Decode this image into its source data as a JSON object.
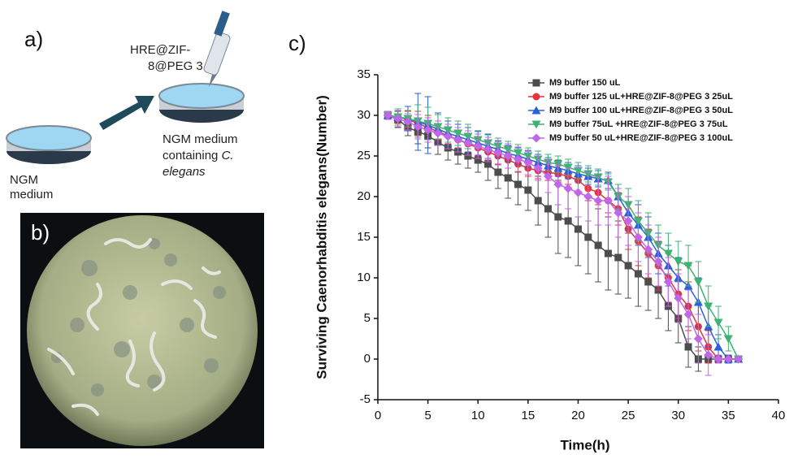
{
  "panel_a": {
    "label": "a)",
    "reagent_lines": [
      "HRE@ZIF-",
      "8@PEG 3"
    ],
    "dish1_lines": [
      "NGM",
      "medium"
    ],
    "dish2_lines": [
      "NGM medium",
      "containing"
    ],
    "dish2_italic_prefix": "C.",
    "dish2_italic_line": "elegans"
  },
  "panel_b": {
    "label": "b)"
  },
  "panel_c": {
    "label": "c)"
  },
  "chart_data": {
    "type": "line",
    "x_label": "Time(h)",
    "y_label": "Surviving Caenorhabditis elegans(Number)",
    "x": [
      1,
      2,
      3,
      4,
      5,
      6,
      7,
      8,
      9,
      10,
      11,
      12,
      13,
      14,
      15,
      16,
      17,
      18,
      19,
      20,
      21,
      22,
      23,
      24,
      25,
      26,
      27,
      28,
      29,
      30,
      31,
      32,
      33,
      34,
      35,
      36
    ],
    "xlim": [
      0,
      40
    ],
    "xticks": [
      0,
      5,
      10,
      15,
      20,
      25,
      30,
      35,
      40
    ],
    "ylim": [
      -5,
      35
    ],
    "yticks": [
      -5,
      0,
      5,
      10,
      15,
      20,
      25,
      30,
      35
    ],
    "legend": "top-right",
    "series": [
      {
        "name": "M9 buffer 150 uL",
        "color": "#4d4d4d",
        "marker": "square",
        "values": [
          30,
          29.5,
          28.5,
          28,
          27.5,
          26.7,
          26,
          25.5,
          25,
          24.5,
          24,
          23,
          22.3,
          21.5,
          20.8,
          19.5,
          18.5,
          17.5,
          17,
          16,
          15,
          14,
          13,
          12.5,
          11.5,
          10.5,
          9.5,
          8.5,
          6.5,
          5,
          1.5,
          0,
          0,
          0,
          0,
          0
        ],
        "errors": [
          0.5,
          1,
          1,
          1.5,
          1.5,
          1.5,
          1.5,
          1.5,
          1.5,
          1.5,
          2,
          2,
          2.5,
          2.5,
          2.5,
          3,
          3.5,
          4.5,
          4.5,
          4.5,
          4.5,
          4.5,
          4.5,
          4.5,
          4,
          4,
          3.5,
          3.5,
          3,
          3,
          2.5,
          1.5,
          0.5,
          0,
          0,
          0
        ]
      },
      {
        "name": "M9 buffer 125 uL+HRE@ZIF-8@PEG 3 25uL",
        "color": "#e8323c",
        "marker": "circle",
        "values": [
          30,
          29.8,
          29.5,
          29,
          28.5,
          28,
          27.5,
          27,
          26.5,
          26,
          25.5,
          25,
          24.5,
          24,
          23.5,
          23.2,
          23,
          22.8,
          22.5,
          22,
          21,
          20.5,
          19.5,
          18.5,
          16,
          14.5,
          13,
          11.5,
          10,
          8,
          6.5,
          4,
          1.5,
          0,
          0,
          0
        ],
        "errors": [
          0.5,
          0.8,
          1,
          1.5,
          1.5,
          1,
          1,
          1,
          1,
          1,
          1,
          1,
          1,
          1,
          1,
          1,
          1,
          1,
          1,
          1.5,
          1.5,
          1.5,
          1.5,
          2,
          2.5,
          3,
          3,
          3,
          3,
          3,
          3,
          3,
          2,
          0.5,
          0,
          0
        ]
      },
      {
        "name": "M9 buffer 100 uL+HRE@ZIF-8@PEG 3 50uL",
        "color": "#2b5fdb",
        "marker": "triangle-up",
        "values": [
          30,
          29.8,
          29.6,
          29.2,
          28.8,
          28.3,
          27.8,
          27.4,
          27,
          26.6,
          26.2,
          25.8,
          25.3,
          25,
          24.6,
          24.2,
          23.8,
          23.5,
          23.2,
          22.8,
          22.5,
          22.2,
          22,
          20,
          18,
          16.5,
          15,
          13,
          11.5,
          10,
          9,
          7,
          4,
          1.5,
          0,
          0
        ],
        "errors": [
          0.5,
          1,
          1.5,
          3.5,
          3.5,
          2,
          1.5,
          1.5,
          1.5,
          1.5,
          1.5,
          1,
          1,
          1,
          1,
          1,
          1,
          1,
          1,
          1,
          1,
          1,
          1,
          1.5,
          2,
          2.5,
          2.5,
          2.5,
          2.5,
          2.5,
          2.5,
          3,
          2.5,
          1.5,
          0.5,
          0
        ]
      },
      {
        "name": "M9 buffer 75uL +HRE@ZIF-8@PEG 3 75uL",
        "color": "#3cb371",
        "marker": "triangle-down",
        "values": [
          30,
          29.8,
          29.6,
          29.3,
          29,
          28.6,
          28.2,
          27.8,
          27.4,
          27,
          26.6,
          26.2,
          25.8,
          25.4,
          25,
          24.6,
          24.2,
          24,
          23.6,
          23.2,
          22.8,
          22.4,
          21.8,
          20,
          19,
          17,
          15.5,
          14,
          13,
          12,
          11.5,
          9.5,
          6.5,
          4.5,
          2.5,
          0
        ],
        "errors": [
          0.5,
          1,
          1,
          2,
          2,
          1.5,
          1.5,
          1.5,
          1.5,
          1,
          1,
          1,
          1,
          1,
          1,
          1,
          1,
          1,
          1,
          1,
          1,
          1,
          1,
          1.5,
          2,
          2.5,
          2.5,
          2.5,
          2.5,
          2.5,
          2.5,
          2.5,
          2.5,
          2,
          1.5,
          0
        ]
      },
      {
        "name": "M9 buffer 50 uL+HRE@ZIF-8@PEG 3 100uL",
        "color": "#c066e8",
        "marker": "diamond",
        "values": [
          30,
          29.6,
          29.2,
          28.6,
          28.2,
          27.8,
          27.4,
          27,
          26.6,
          26.2,
          25.8,
          25.4,
          25,
          24.6,
          24.2,
          23.5,
          22.5,
          21.5,
          21,
          20.5,
          20,
          19.5,
          19.5,
          18,
          17,
          15,
          13.5,
          12,
          9.5,
          7.5,
          5.5,
          2.5,
          0.5,
          0,
          0,
          0
        ],
        "errors": [
          0.5,
          1,
          1,
          1.5,
          1.5,
          1.5,
          1.5,
          1.5,
          1.5,
          1.5,
          1.5,
          1.5,
          1.5,
          1.5,
          1.5,
          1.5,
          2,
          2.5,
          2.5,
          3,
          3,
          3,
          3,
          3,
          3,
          3,
          3,
          3,
          3,
          3,
          3,
          3,
          2.5,
          0.5,
          0,
          0
        ]
      }
    ]
  }
}
